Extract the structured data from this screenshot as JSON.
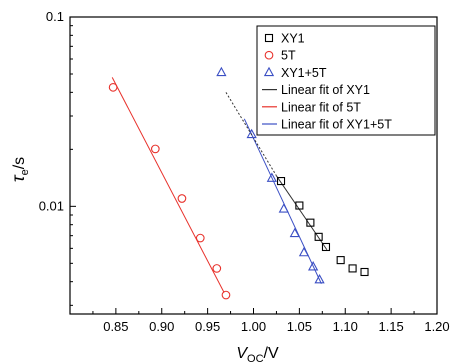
{
  "chart_data": {
    "type": "scatter",
    "title": "",
    "xlabel": {
      "main": "V",
      "sub": "OC",
      "unit": "/V"
    },
    "ylabel": {
      "main": "τ",
      "sub": "e",
      "unit": "/s"
    },
    "xlim": [
      0.8,
      1.2
    ],
    "ylim": [
      0.0027,
      0.1
    ],
    "yscale": "log",
    "x_ticks": [
      0.85,
      0.9,
      0.95,
      1.0,
      1.05,
      1.1,
      1.15,
      1.2
    ],
    "x_tick_labels": [
      "0.85",
      "0.90",
      "0.95",
      "1.00",
      "1.05",
      "1.10",
      "1.15",
      "1.20"
    ],
    "y_tick_labels": [
      {
        "value": 0.1,
        "label": "0.1"
      },
      {
        "value": 0.01,
        "label": "0.01"
      }
    ],
    "legend_position": "top-right",
    "series": [
      {
        "name": "XY1",
        "marker": "square",
        "color": "#000000",
        "x": [
          1.03,
          1.05,
          1.062,
          1.071,
          1.079,
          1.095,
          1.108,
          1.121
        ],
        "y": [
          0.0136,
          0.0101,
          0.0082,
          0.0069,
          0.0061,
          0.0052,
          0.0047,
          0.0045
        ]
      },
      {
        "name": "5T",
        "marker": "circle",
        "color": "#e8322c",
        "x": [
          0.847,
          0.893,
          0.922,
          0.942,
          0.96,
          0.97
        ],
        "y": [
          0.0425,
          0.0201,
          0.011,
          0.0068,
          0.0047,
          0.0034
        ]
      },
      {
        "name": "XY1+5T",
        "marker": "triangle",
        "color": "#3b4fc4",
        "x": [
          0.965,
          0.998,
          1.02,
          1.033,
          1.045,
          1.055,
          1.065,
          1.072
        ],
        "y": [
          0.051,
          0.024,
          0.0141,
          0.0097,
          0.0072,
          0.0057,
          0.0048,
          0.0041
        ]
      }
    ],
    "fits": [
      {
        "name": "Linear fit of XY1",
        "color": "#333333",
        "dash": false,
        "x": [
          1.025,
          1.08
        ],
        "y": [
          0.0145,
          0.0059
        ]
      },
      {
        "name": "Linear fit of 5T",
        "color": "#e8322c",
        "dash": false,
        "x": [
          0.846,
          0.968
        ],
        "y": [
          0.048,
          0.0035
        ]
      },
      {
        "name": "Linear fit of XY1+5T",
        "color": "#3b4fc4",
        "dash": false,
        "x": [
          0.99,
          1.074
        ],
        "y": [
          0.029,
          0.0039
        ]
      },
      {
        "name": "",
        "color": "#333333",
        "dash": true,
        "x": [
          0.97,
          1.025
        ],
        "y": [
          0.04,
          0.0145
        ]
      }
    ]
  }
}
